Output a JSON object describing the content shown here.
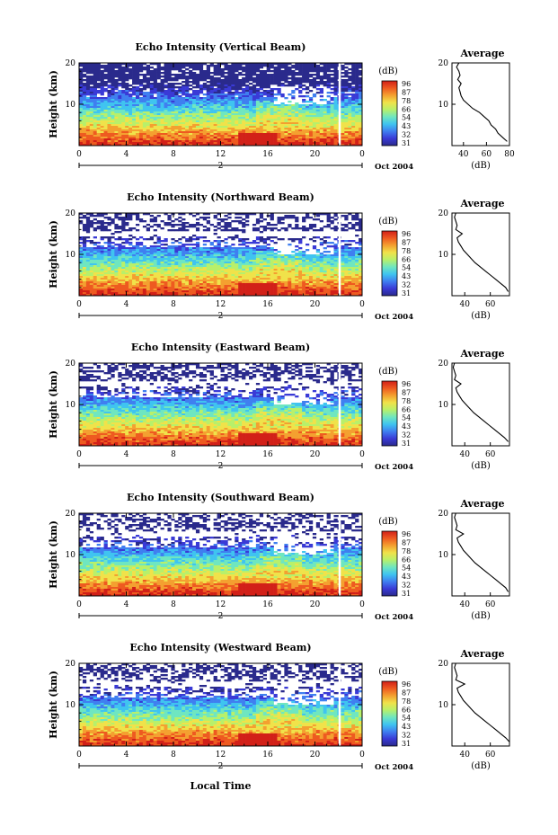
{
  "chart_data": {
    "type": "heatmap",
    "x_ticks": [
      "0",
      "4",
      "8",
      "12",
      "16",
      "20",
      "0"
    ],
    "x_range_hours": [
      0,
      24
    ],
    "y_ticks": [
      "20",
      "10"
    ],
    "y_range_km": [
      0,
      20
    ],
    "ylabel": "Height (km)",
    "xlabel": "Local Time",
    "day_marker": "2",
    "date_label": "Oct 2004",
    "colorbar": {
      "unit": "(dB)",
      "labels": [
        "96",
        "87",
        "78",
        "66",
        "54",
        "43",
        "32",
        "31"
      ],
      "colors": [
        "#2a2a8c",
        "#3a3ad6",
        "#3f7ff0",
        "#3fc4f0",
        "#6fe6c0",
        "#b8f06a",
        "#f0e24a",
        "#f4a030",
        "#ee5a20",
        "#d22018"
      ]
    },
    "average_panel": {
      "title": "Average",
      "xlabel": "(dB)"
    },
    "panels": [
      {
        "title": "Echo Intensity (Vertical Beam)",
        "avg_x_ticks": [
          "40",
          "60",
          "80"
        ],
        "avg_x_range": [
          30,
          80
        ],
        "avg_y_ticks": [
          "20",
          "10"
        ],
        "average_profile": {
          "height_km": [
            1,
            2,
            3,
            4,
            5,
            6,
            7,
            8,
            9,
            10,
            11,
            12,
            13,
            14,
            15,
            16,
            17,
            18,
            19,
            20
          ],
          "db": [
            78,
            74,
            70,
            68,
            64,
            62,
            58,
            54,
            48,
            44,
            40,
            38,
            37,
            36,
            38,
            35,
            37,
            36,
            34,
            36
          ]
        }
      },
      {
        "title": "Echo Intensity (Northward Beam)",
        "avg_x_ticks": [
          "40",
          "60"
        ],
        "avg_x_range": [
          30,
          75
        ],
        "avg_y_ticks": [
          "20",
          "10"
        ],
        "average_profile": {
          "height_km": [
            1,
            2,
            3,
            4,
            5,
            6,
            7,
            8,
            9,
            10,
            11,
            12,
            13,
            14,
            15,
            16,
            17,
            18,
            19,
            20
          ],
          "db": [
            74,
            72,
            68,
            64,
            60,
            56,
            52,
            48,
            45,
            42,
            39,
            37,
            35,
            34,
            38,
            33,
            34,
            33,
            32,
            33
          ]
        }
      },
      {
        "title": "Echo Intensity (Eastward Beam)",
        "avg_x_ticks": [
          "40",
          "60"
        ],
        "avg_x_range": [
          30,
          75
        ],
        "avg_y_ticks": [
          "20",
          "10"
        ],
        "average_profile": {
          "height_km": [
            1,
            2,
            3,
            4,
            5,
            6,
            7,
            8,
            9,
            10,
            11,
            12,
            13,
            14,
            15,
            16,
            17,
            18,
            19,
            20
          ],
          "db": [
            74,
            71,
            67,
            63,
            59,
            55,
            51,
            47,
            44,
            41,
            38,
            36,
            34,
            33,
            37,
            32,
            33,
            32,
            31,
            32
          ]
        }
      },
      {
        "title": "Echo Intensity (Southward Beam)",
        "avg_x_ticks": [
          "40",
          "60"
        ],
        "avg_x_range": [
          30,
          75
        ],
        "avg_y_ticks": [
          "20",
          "10"
        ],
        "average_profile": {
          "height_km": [
            1,
            2,
            3,
            4,
            5,
            6,
            7,
            8,
            9,
            10,
            11,
            12,
            13,
            14,
            15,
            16,
            17,
            18,
            19,
            20
          ],
          "db": [
            74,
            72,
            68,
            64,
            60,
            56,
            52,
            48,
            45,
            42,
            39,
            37,
            35,
            34,
            39,
            33,
            34,
            33,
            32,
            33
          ]
        }
      },
      {
        "title": "Echo Intensity (Westward Beam)",
        "avg_x_ticks": [
          "40",
          "60"
        ],
        "avg_x_range": [
          30,
          75
        ],
        "avg_y_ticks": [
          "20",
          "10"
        ],
        "average_profile": {
          "height_km": [
            1,
            2,
            3,
            4,
            5,
            6,
            7,
            8,
            9,
            10,
            11,
            12,
            13,
            14,
            15,
            16,
            17,
            18,
            19,
            20
          ],
          "db": [
            75,
            72,
            68,
            64,
            60,
            56,
            52,
            48,
            45,
            42,
            39,
            37,
            35,
            34,
            40,
            33,
            34,
            33,
            32,
            33
          ]
        }
      }
    ]
  }
}
